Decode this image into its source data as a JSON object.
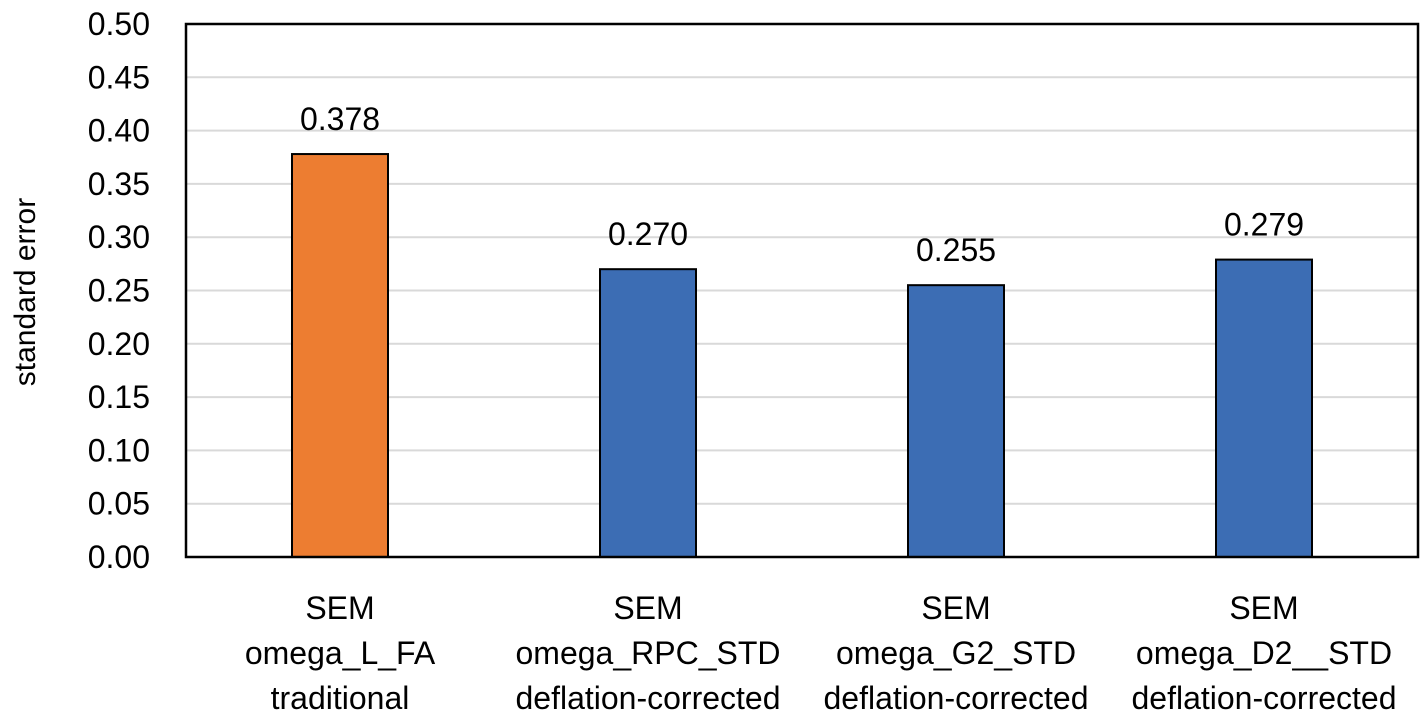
{
  "chart_data": {
    "type": "bar",
    "title": "",
    "xlabel": "",
    "ylabel": "standard error",
    "ylim": [
      0,
      0.5
    ],
    "ytick_step": 0.05,
    "yticks": [
      "0.00",
      "0.05",
      "0.10",
      "0.15",
      "0.20",
      "0.25",
      "0.30",
      "0.35",
      "0.40",
      "0.45",
      "0.50"
    ],
    "grid": true,
    "legend": "none",
    "categories": [
      [
        "SEM",
        "omega_L_FA",
        "traditional"
      ],
      [
        "SEM",
        "omega_RPC_STD",
        "deflation-corrected"
      ],
      [
        "SEM",
        "omega_G2_STD",
        "deflation-corrected"
      ],
      [
        "SEM",
        "omega_D2__STD",
        "deflation-corrected"
      ]
    ],
    "values": [
      0.378,
      0.27,
      0.255,
      0.279
    ],
    "data_labels": [
      "0.378",
      "0.270",
      "0.255",
      "0.279"
    ],
    "bar_colors": [
      "#ED7D31",
      "#3C6DB4",
      "#3C6DB4",
      "#3C6DB4"
    ],
    "grid_color": "#D9D9D9",
    "axis_color": "#000000"
  }
}
